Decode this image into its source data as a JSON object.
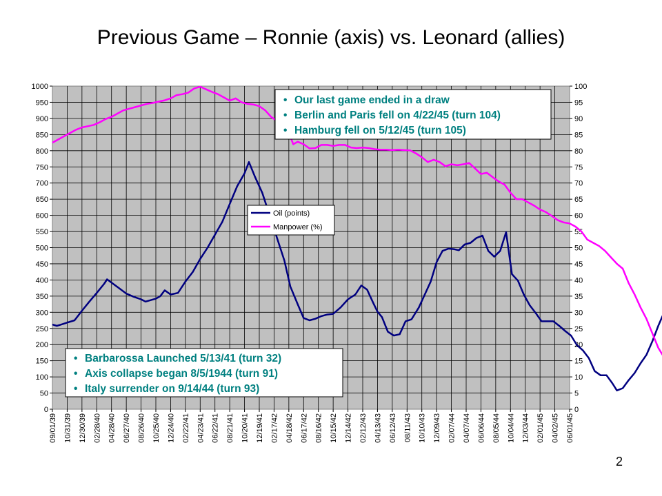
{
  "slide": {
    "title": "Previous Game – Ronnie (axis) vs. Leonard (allies)",
    "page_number": "2"
  },
  "colors": {
    "plot_bg": "#C0C0C0",
    "grid": "#000000",
    "oil": "#000080",
    "manpower": "#FF00FF",
    "note_text": "#008080"
  },
  "notes": {
    "top_right": [
      "Our last game ended in a draw",
      "Berlin and Paris fell on 4/22/45 (turn 104)",
      "Hamburg fell on 5/12/45 (turn 105)"
    ],
    "bottom_left": [
      "Barbarossa Launched 5/13/41 (turn 32)",
      "Axis collapse began 8/5/1944 (turn 91)",
      "Italy surrender on 9/14/44 (turn 93)"
    ]
  },
  "chart_data": {
    "type": "line",
    "title": "",
    "grid": true,
    "legend_position": "center",
    "left_axis": {
      "min": 0,
      "max": 1000,
      "step": 50
    },
    "right_axis": {
      "min": 0,
      "max": 100,
      "step": 5
    },
    "x_tick_labels": [
      "09/01/39",
      "10/31/39",
      "12/30/39",
      "02/28/40",
      "04/28/40",
      "06/27/40",
      "08/26/40",
      "10/25/40",
      "12/24/40",
      "02/22/41",
      "04/23/41",
      "06/22/41",
      "08/21/41",
      "10/20/41",
      "12/19/41",
      "02/17/42",
      "04/18/42",
      "06/17/42",
      "08/16/42",
      "10/15/42",
      "12/14/42",
      "02/12/43",
      "04/13/43",
      "06/12/43",
      "08/11/43",
      "10/10/43",
      "12/09/43",
      "02/07/44",
      "04/07/44",
      "06/06/44",
      "08/05/44",
      "10/04/44",
      "12/03/44",
      "02/01/45",
      "04/02/45",
      "06/01/45"
    ],
    "series": [
      {
        "name": "Oil (points)",
        "axis": "left",
        "points": [
          [
            0,
            262
          ],
          [
            0.3,
            258
          ],
          [
            0.6,
            262
          ],
          [
            1,
            268
          ],
          [
            1.5,
            275
          ],
          [
            2,
            305
          ],
          [
            2.5,
            333
          ],
          [
            3,
            360
          ],
          [
            3.5,
            388
          ],
          [
            3.7,
            402
          ],
          [
            4,
            392
          ],
          [
            4.5,
            375
          ],
          [
            5,
            358
          ],
          [
            5.5,
            348
          ],
          [
            6,
            340
          ],
          [
            6.3,
            333
          ],
          [
            7,
            342
          ],
          [
            7.3,
            350
          ],
          [
            7.6,
            368
          ],
          [
            8,
            355
          ],
          [
            8.5,
            360
          ],
          [
            9,
            395
          ],
          [
            9.5,
            425
          ],
          [
            10,
            465
          ],
          [
            10.5,
            500
          ],
          [
            11,
            540
          ],
          [
            11.5,
            580
          ],
          [
            12,
            635
          ],
          [
            12.5,
            690
          ],
          [
            13,
            730
          ],
          [
            13.3,
            765
          ],
          [
            13.7,
            720
          ],
          [
            14.2,
            670
          ],
          [
            14.7,
            600
          ],
          [
            15.2,
            530
          ],
          [
            15.7,
            460
          ],
          [
            16.1,
            380
          ],
          [
            16.6,
            325
          ],
          [
            17,
            282
          ],
          [
            17.4,
            275
          ],
          [
            17.8,
            280
          ],
          [
            18.2,
            288
          ],
          [
            18.6,
            293
          ],
          [
            19,
            295
          ],
          [
            19.5,
            315
          ],
          [
            20,
            340
          ],
          [
            20.5,
            355
          ],
          [
            20.9,
            383
          ],
          [
            21.3,
            370
          ],
          [
            21.7,
            330
          ],
          [
            22,
            302
          ],
          [
            22.3,
            285
          ],
          [
            22.7,
            240
          ],
          [
            23.1,
            228
          ],
          [
            23.5,
            232
          ],
          [
            23.9,
            272
          ],
          [
            24.3,
            278
          ],
          [
            24.8,
            315
          ],
          [
            25.2,
            355
          ],
          [
            25.6,
            395
          ],
          [
            26,
            455
          ],
          [
            26.4,
            490
          ],
          [
            26.8,
            497
          ],
          [
            27.2,
            495
          ],
          [
            27.5,
            492
          ],
          [
            27.9,
            510
          ],
          [
            28.3,
            515
          ],
          [
            28.7,
            530
          ],
          [
            29.1,
            537
          ],
          [
            29.5,
            490
          ],
          [
            29.9,
            472
          ],
          [
            30.3,
            490
          ],
          [
            30.7,
            548
          ],
          [
            31.1,
            418
          ],
          [
            31.5,
            398
          ],
          [
            31.9,
            355
          ],
          [
            32.3,
            322
          ],
          [
            32.7,
            298
          ],
          [
            33.1,
            272
          ],
          [
            33.5,
            272
          ],
          [
            33.9,
            272
          ],
          [
            34.3,
            258
          ],
          [
            34.7,
            242
          ],
          [
            35.1,
            228
          ],
          [
            35.5,
            198
          ],
          [
            35.9,
            182
          ],
          [
            36.3,
            158
          ],
          [
            36.7,
            118
          ],
          [
            37.1,
            105
          ],
          [
            37.5,
            105
          ],
          [
            37.9,
            80
          ],
          [
            38.2,
            58
          ],
          [
            38.6,
            65
          ],
          [
            39,
            90
          ],
          [
            39.4,
            112
          ],
          [
            39.8,
            142
          ],
          [
            40.2,
            168
          ],
          [
            40.6,
            210
          ],
          [
            41,
            258
          ],
          [
            41.4,
            300
          ],
          [
            41.8,
            350
          ],
          [
            42.2,
            398
          ],
          [
            42.6,
            455
          ],
          [
            43.1,
            500
          ],
          [
            43.5,
            530
          ],
          [
            43.9,
            545
          ],
          [
            44.3,
            567
          ]
        ]
      },
      {
        "name": "Manpower (%)",
        "axis": "right",
        "points": [
          [
            0,
            82.5
          ],
          [
            0.4,
            83.5
          ],
          [
            0.8,
            84.5
          ],
          [
            1.2,
            85.5
          ],
          [
            1.6,
            86.5
          ],
          [
            2,
            87.2
          ],
          [
            2.4,
            87.6
          ],
          [
            2.8,
            88
          ],
          [
            3.2,
            88.8
          ],
          [
            3.6,
            89.8
          ],
          [
            4,
            90.5
          ],
          [
            4.4,
            91.5
          ],
          [
            4.8,
            92.5
          ],
          [
            5.2,
            93
          ],
          [
            5.6,
            93.5
          ],
          [
            6,
            94
          ],
          [
            6.4,
            94.5
          ],
          [
            6.8,
            94.8
          ],
          [
            7.2,
            95.2
          ],
          [
            7.6,
            95.6
          ],
          [
            8,
            96.2
          ],
          [
            8.4,
            97.2
          ],
          [
            8.8,
            97.5
          ],
          [
            9.2,
            98
          ],
          [
            9.6,
            99.3
          ],
          [
            10,
            99.8
          ],
          [
            10.4,
            99
          ],
          [
            10.8,
            98.2
          ],
          [
            11.2,
            97.5
          ],
          [
            11.6,
            96.5
          ],
          [
            12,
            95.5
          ],
          [
            12.4,
            96.2
          ],
          [
            12.8,
            95
          ],
          [
            13.2,
            94.5
          ],
          [
            13.6,
            94.3
          ],
          [
            14,
            93.8
          ],
          [
            14.4,
            92.5
          ],
          [
            14.8,
            90.5
          ],
          [
            15.2,
            89.2
          ],
          [
            15.6,
            87.8
          ],
          [
            16,
            85.5
          ],
          [
            16.3,
            82
          ],
          [
            16.6,
            82.8
          ],
          [
            17,
            82
          ],
          [
            17.4,
            80.7
          ],
          [
            17.8,
            80.8
          ],
          [
            18.2,
            81.8
          ],
          [
            18.6,
            81.8
          ],
          [
            19,
            81.5
          ],
          [
            19.4,
            81.8
          ],
          [
            19.8,
            81.8
          ],
          [
            20.2,
            81
          ],
          [
            20.6,
            80.8
          ],
          [
            21,
            81
          ],
          [
            21.4,
            80.8
          ],
          [
            21.8,
            80.5
          ],
          [
            22.2,
            80.3
          ],
          [
            22.6,
            80.3
          ],
          [
            23,
            80.2
          ],
          [
            23.4,
            80.3
          ],
          [
            23.8,
            80.2
          ],
          [
            24.2,
            80.1
          ],
          [
            24.6,
            79.2
          ],
          [
            25,
            78
          ],
          [
            25.4,
            76.5
          ],
          [
            25.8,
            77.2
          ],
          [
            26.2,
            76.5
          ],
          [
            26.6,
            75.2
          ],
          [
            27,
            75.8
          ],
          [
            27.4,
            75.5
          ],
          [
            27.8,
            75.8
          ],
          [
            28.2,
            76.2
          ],
          [
            28.6,
            74.5
          ],
          [
            29,
            72.8
          ],
          [
            29.4,
            73.2
          ],
          [
            29.8,
            71.8
          ],
          [
            30.2,
            70.5
          ],
          [
            30.6,
            69.5
          ],
          [
            31,
            67
          ],
          [
            31.4,
            65
          ],
          [
            31.8,
            65
          ],
          [
            32.2,
            64
          ],
          [
            32.6,
            63
          ],
          [
            33,
            61.8
          ],
          [
            33.4,
            61
          ],
          [
            33.8,
            59.8
          ],
          [
            34.2,
            58.5
          ],
          [
            34.6,
            57.8
          ],
          [
            35,
            57.5
          ],
          [
            35.4,
            56.5
          ],
          [
            35.8,
            55
          ],
          [
            36.2,
            52.5
          ],
          [
            36.6,
            51.5
          ],
          [
            37,
            50.5
          ],
          [
            37.4,
            49
          ],
          [
            37.8,
            47
          ],
          [
            38.2,
            45
          ],
          [
            38.6,
            43.5
          ],
          [
            39,
            39
          ],
          [
            39.4,
            35.5
          ],
          [
            39.8,
            31.5
          ],
          [
            40.2,
            28
          ],
          [
            40.6,
            23.5
          ],
          [
            41,
            19
          ],
          [
            41.4,
            16
          ],
          [
            41.8,
            13.5
          ],
          [
            42.2,
            10
          ],
          [
            42.6,
            6.5
          ],
          [
            43,
            3.5
          ],
          [
            43.4,
            0
          ]
        ]
      }
    ]
  }
}
